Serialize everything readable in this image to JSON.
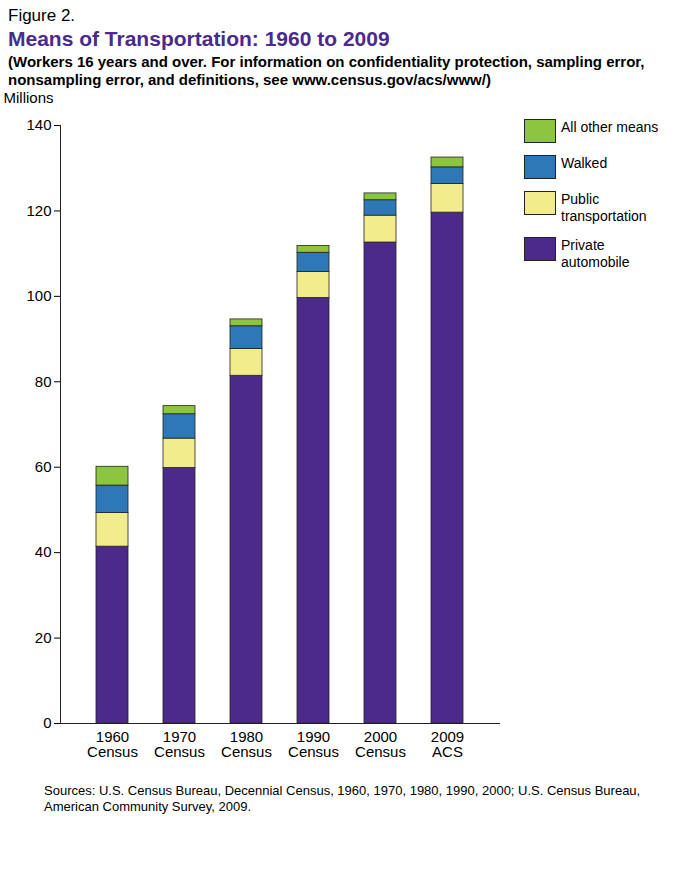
{
  "chart_data": {
    "type": "bar",
    "figure_label": "Figure 2.",
    "title": "Means of Transportation: 1960 to 2009",
    "subtitle": "(Workers 16 years and over. For information on confidentiality protection, sampling error, nonsampling error, and definitions, see www.census.gov/acs/www/)",
    "y_label": "Millions",
    "source": "Sources: U.S. Census Bureau, Decennial Census, 1960, 1970, 1980, 1990, 2000; U.S. Census Bureau, American Community Survey, 2009.",
    "categories": [
      "1960 Census",
      "1970 Census",
      "1980 Census",
      "1990 Census",
      "2000 Census",
      "2009 ACS"
    ],
    "series": [
      {
        "name": "Private automobile",
        "color": "#4b2a8c",
        "values": [
          41.4,
          59.8,
          81.4,
          99.6,
          112.6,
          119.6
        ]
      },
      {
        "name": "Public transportation",
        "color": "#f2ec8c",
        "values": [
          7.9,
          6.9,
          6.3,
          6.1,
          6.3,
          6.7
        ]
      },
      {
        "name": "Walked",
        "color": "#2e78b8",
        "values": [
          6.4,
          5.7,
          5.3,
          4.5,
          3.6,
          3.9
        ]
      },
      {
        "name": "All other means",
        "color": "#8cc63f",
        "values": [
          4.4,
          1.9,
          1.6,
          1.6,
          1.6,
          2.3
        ]
      }
    ],
    "stacked": true,
    "legend": "right",
    "grid": false,
    "ylim": [
      0,
      140
    ],
    "yticks": [
      0,
      20,
      40,
      60,
      80,
      100,
      120,
      140
    ]
  }
}
